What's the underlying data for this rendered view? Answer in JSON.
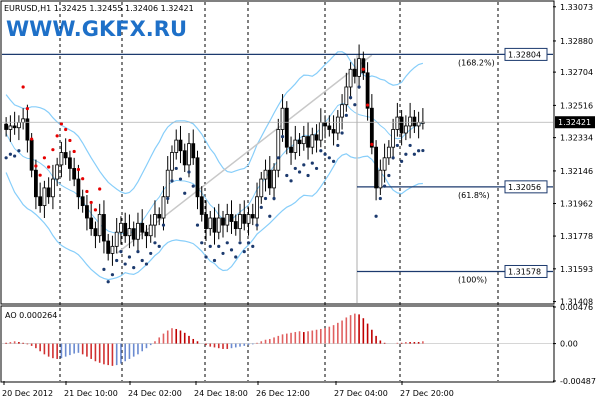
{
  "title_bar": "EURUSD,H1  1.32425 1.32455 1.32406 1.32421",
  "brand": "WWW.GKFX.RU",
  "colors": {
    "candle": "#000000",
    "sar_above": "#e60000",
    "sar_below": "#1c3a6e",
    "band": "#87cefa",
    "level": "#1c3a6e",
    "fibo_trend": "#c8c8c8",
    "ao_up": "#e06060",
    "ao_down": "#c00000",
    "ao_neg_up": "#6a8ad0",
    "ao_neg_down": "#d03030",
    "price_tag_bg": "#000000",
    "grid": "#000000"
  },
  "chart_data": [
    {
      "type": "candlestick",
      "name": "EURUSD,H1",
      "ylim": [
        1.314,
        1.331
      ],
      "y_ticks": [
        "1.33073",
        "1.32880",
        "1.32704",
        "1.32516",
        "1.32334",
        "1.32146",
        "1.31962",
        "1.31778",
        "1.31593",
        "1.31408"
      ],
      "y_tick_values": [
        1.33073,
        1.3288,
        1.32704,
        1.32516,
        1.32334,
        1.32146,
        1.31962,
        1.31778,
        1.31593,
        1.31408
      ],
      "x_ticks": [
        "20 Dec 2012",
        "21 Dec 10:00",
        "24 Dec 02:00",
        "24 Dec 18:00",
        "26 Dec 12:00",
        "27 Dec 04:00",
        "27 Dec 20:00"
      ],
      "current_price": "1.32421",
      "close": [
        1.3238,
        1.324,
        1.3239,
        1.3242,
        1.3244,
        1.3232,
        1.3215,
        1.32,
        1.3195,
        1.3205,
        1.32,
        1.321,
        1.3218,
        1.3225,
        1.3222,
        1.3216,
        1.321,
        1.32,
        1.3195,
        1.3188,
        1.3182,
        1.3178,
        1.319,
        1.3175,
        1.3168,
        1.3172,
        1.318,
        1.3185,
        1.3178,
        1.3182,
        1.3176,
        1.3185,
        1.318,
        1.3178,
        1.3184,
        1.319,
        1.3188,
        1.32,
        1.3215,
        1.3225,
        1.3232,
        1.3226,
        1.3218,
        1.323,
        1.3222,
        1.32,
        1.319,
        1.3182,
        1.3188,
        1.318,
        1.3188,
        1.3184,
        1.319,
        1.3186,
        1.3182,
        1.319,
        1.3185,
        1.319,
        1.3188,
        1.32,
        1.321,
        1.3215,
        1.3205,
        1.3215,
        1.3238,
        1.325,
        1.3228,
        1.3225,
        1.3232,
        1.323,
        1.3234,
        1.3228,
        1.3235,
        1.3232,
        1.3242,
        1.324,
        1.3238,
        1.3236,
        1.3245,
        1.3252,
        1.3262,
        1.3272,
        1.3268,
        1.3278,
        1.327,
        1.325,
        1.3228,
        1.3205,
        1.3215,
        1.3222,
        1.3228,
        1.3238,
        1.3245,
        1.3236,
        1.324,
        1.3245,
        1.324,
        1.3242,
        1.32421
      ]
    },
    {
      "type": "line",
      "name": "Parabolic SAR",
      "points_above_color": "sar_above",
      "points_below_color": "sar_below"
    },
    {
      "type": "line",
      "name": "Bands",
      "series": [
        "upper",
        "middle",
        "lower"
      ]
    },
    {
      "type": "annotations",
      "name": "Fibonacci levels",
      "levels": [
        {
          "label": "(168.2%)",
          "price_tag": "1.32804",
          "value": 1.32804
        },
        {
          "label": "(61.8%)",
          "price_tag": "1.32056",
          "value": 1.32056
        },
        {
          "label": "(100%)",
          "price_tag": "1.31578",
          "value": 1.31578
        }
      ]
    },
    {
      "type": "bar",
      "name": "AO",
      "label": "AO 0.000264",
      "ylim": [
        -0.00487,
        0.00476
      ],
      "y_ticks": [
        "0.00476",
        "0.00",
        "-0.00487"
      ],
      "y_tick_values": [
        0.00476,
        0,
        -0.00487
      ],
      "values": [
        0.0001,
        0.0002,
        0.0003,
        0.0002,
        0.0001,
        -0.0001,
        -0.0003,
        -0.0006,
        -0.001,
        -0.0014,
        -0.0017,
        -0.0019,
        -0.002,
        -0.0019,
        -0.0017,
        -0.0015,
        -0.0013,
        -0.0012,
        -0.0014,
        -0.0017,
        -0.002,
        -0.0023,
        -0.0025,
        -0.0027,
        -0.0028,
        -0.0029,
        -0.0028,
        -0.0026,
        -0.0023,
        -0.002,
        -0.0017,
        -0.0014,
        -0.001,
        -0.0006,
        -0.0002,
        0.0003,
        0.0008,
        0.0013,
        0.0017,
        0.002,
        0.0019,
        0.0017,
        0.0014,
        0.001,
        0.0006,
        0.0003,
        0.0,
        -0.0002,
        -0.0004,
        -0.0005,
        -0.0006,
        -0.0007,
        -0.0007,
        -0.0006,
        -0.0005,
        -0.0004,
        -0.0003,
        -0.0002,
        -0.0001,
        0.0001,
        0.0003,
        0.0005,
        0.0006,
        0.0008,
        0.001,
        0.0012,
        0.0013,
        0.0014,
        0.0015,
        0.0016,
        0.0015,
        0.0016,
        0.0017,
        0.0018,
        0.0019,
        0.002,
        0.0022,
        0.0024,
        0.0027,
        0.003,
        0.0034,
        0.0037,
        0.0039,
        0.0038,
        0.0033,
        0.0026,
        0.0018,
        0.001,
        0.0004,
        0.0001,
        0.0,
        0.0,
        0.0001,
        0.0001,
        0.0002,
        0.0002,
        0.0002,
        0.0002,
        0.0003
      ]
    }
  ]
}
